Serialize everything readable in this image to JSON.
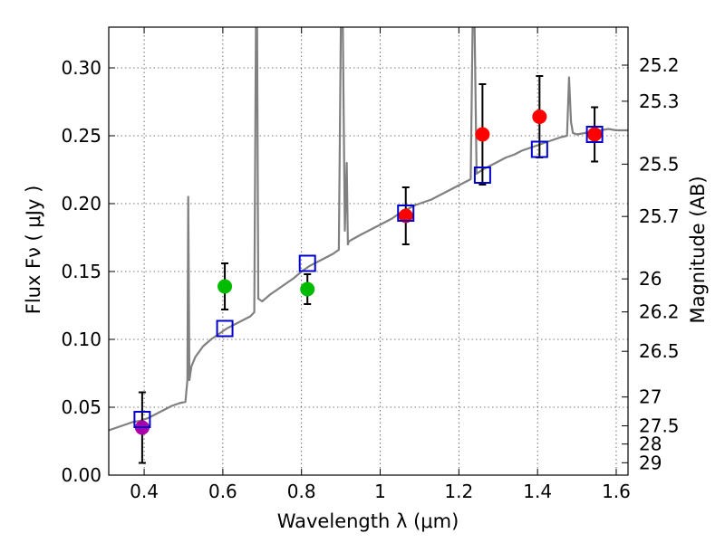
{
  "chart_data": {
    "type": "scatter",
    "xlabel": "Wavelength  λ (μm)",
    "ylabel_left": "Flux  Fν  ( μJy )",
    "ylabel_right": "Magnitude (AB)",
    "xlim": [
      0.31,
      1.63
    ],
    "ylim": [
      0.0,
      0.33
    ],
    "grid": true,
    "x_ticks": [
      0.4,
      0.6,
      0.8,
      1.0,
      1.2,
      1.4,
      1.6
    ],
    "x_tick_labels": [
      "0.4",
      "0.6",
      "0.8",
      "1",
      "1.2",
      "1.4",
      "1.6"
    ],
    "y_ticks": [
      0.0,
      0.05,
      0.1,
      0.15,
      0.2,
      0.25,
      0.3
    ],
    "y_tick_labels": [
      "0.00",
      "0.05",
      "0.10",
      "0.15",
      "0.20",
      "0.25",
      "0.30"
    ],
    "mag_ticks": [
      25.2,
      25.3,
      25.5,
      25.7,
      26,
      26.2,
      26.5,
      27,
      27.5,
      28,
      29
    ],
    "mag_tick_labels": [
      "25.2",
      "25.3",
      "25.5",
      "25.7",
      "26",
      "26.2",
      "26.5",
      "27",
      "27.5",
      "28",
      "29"
    ],
    "model_photometry": {
      "name": "model (boxes)",
      "color": "#0000cc",
      "x": [
        0.395,
        0.605,
        0.815,
        1.065,
        1.26,
        1.405,
        1.545
      ],
      "y": [
        0.041,
        0.108,
        0.156,
        0.193,
        0.221,
        0.24,
        0.251
      ]
    },
    "observed": [
      {
        "name": "magenta",
        "color": "#aa00aa",
        "x": [
          0.395
        ],
        "y": [
          0.035
        ],
        "err": [
          0.026
        ]
      },
      {
        "name": "green",
        "color": "#00bb00",
        "x": [
          0.605,
          0.815
        ],
        "y": [
          0.139,
          0.137
        ],
        "err": [
          0.017,
          0.011
        ]
      },
      {
        "name": "red",
        "color": "#ff0000",
        "x": [
          1.065,
          1.26,
          1.405,
          1.545
        ],
        "y": [
          0.191,
          0.251,
          0.264,
          0.251
        ],
        "err": [
          0.021,
          0.037,
          0.03,
          0.02
        ]
      }
    ],
    "spectrum": {
      "name": "model spectrum",
      "color": "#808080",
      "x": [
        0.31,
        0.33,
        0.35,
        0.37,
        0.39,
        0.41,
        0.43,
        0.45,
        0.47,
        0.49,
        0.505,
        0.51,
        0.512,
        0.515,
        0.52,
        0.53,
        0.55,
        0.57,
        0.59,
        0.61,
        0.63,
        0.65,
        0.67,
        0.68,
        0.684,
        0.687,
        0.69,
        0.7,
        0.72,
        0.74,
        0.76,
        0.78,
        0.8,
        0.82,
        0.84,
        0.86,
        0.88,
        0.895,
        0.9,
        0.905,
        0.91,
        0.915,
        0.918,
        0.92,
        0.925,
        0.95,
        0.97,
        0.99,
        1.01,
        1.03,
        1.05,
        1.07,
        1.09,
        1.11,
        1.13,
        1.15,
        1.17,
        1.19,
        1.21,
        1.23,
        1.235,
        1.238,
        1.24,
        1.245,
        1.26,
        1.28,
        1.3,
        1.32,
        1.34,
        1.36,
        1.38,
        1.4,
        1.42,
        1.44,
        1.46,
        1.475,
        1.48,
        1.485,
        1.49,
        1.5,
        1.52,
        1.54,
        1.56,
        1.58,
        1.6,
        1.62,
        1.63
      ],
      "y": [
        0.033,
        0.035,
        0.037,
        0.039,
        0.04,
        0.042,
        0.045,
        0.048,
        0.051,
        0.053,
        0.054,
        0.07,
        0.205,
        0.07,
        0.08,
        0.087,
        0.095,
        0.1,
        0.104,
        0.108,
        0.111,
        0.114,
        0.117,
        0.12,
        0.33,
        0.33,
        0.13,
        0.128,
        0.133,
        0.137,
        0.141,
        0.145,
        0.15,
        0.154,
        0.157,
        0.16,
        0.163,
        0.166,
        0.33,
        0.33,
        0.18,
        0.23,
        0.17,
        0.172,
        0.173,
        0.177,
        0.18,
        0.183,
        0.186,
        0.189,
        0.193,
        0.196,
        0.199,
        0.201,
        0.203,
        0.206,
        0.209,
        0.212,
        0.215,
        0.218,
        0.33,
        0.33,
        0.33,
        0.222,
        0.225,
        0.228,
        0.231,
        0.234,
        0.236,
        0.239,
        0.241,
        0.243,
        0.245,
        0.247,
        0.249,
        0.25,
        0.293,
        0.26,
        0.252,
        0.251,
        0.252,
        0.253,
        0.254,
        0.255,
        0.254,
        0.254,
        0.254
      ]
    }
  }
}
